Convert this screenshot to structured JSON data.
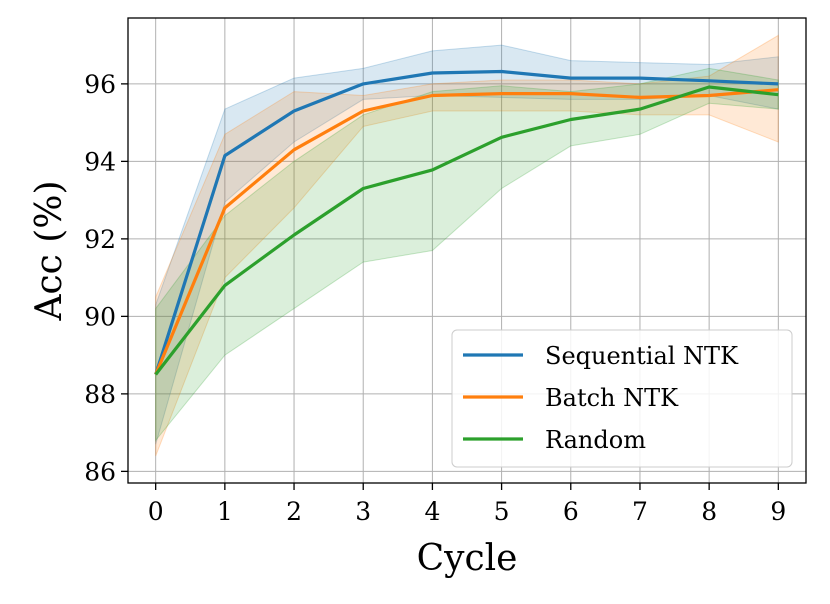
{
  "chart_data": {
    "type": "line",
    "xlabel": "Cycle",
    "ylabel": "Acc (%)",
    "x": [
      0,
      1,
      2,
      3,
      4,
      5,
      6,
      7,
      8,
      9
    ],
    "xticks": [
      0,
      1,
      2,
      3,
      4,
      5,
      6,
      7,
      8,
      9
    ],
    "yticks": [
      86,
      88,
      90,
      92,
      94,
      96
    ],
    "xlim": [
      -0.4,
      9.4
    ],
    "ylim": [
      85.7,
      97.7
    ],
    "grid": true,
    "legend_position": "lower-right",
    "series": [
      {
        "name": "Sequential NTK",
        "color": "#1f77b4",
        "values": [
          88.5,
          94.15,
          95.3,
          96.0,
          96.28,
          96.32,
          96.15,
          96.15,
          96.08,
          96.0
        ],
        "lower": [
          86.7,
          92.95,
          94.5,
          95.6,
          95.7,
          95.65,
          95.6,
          95.6,
          95.7,
          95.35
        ],
        "upper": [
          90.3,
          95.35,
          96.15,
          96.4,
          96.85,
          97.0,
          96.6,
          96.55,
          96.5,
          96.7
        ]
      },
      {
        "name": "Batch NTK",
        "color": "#ff7f0e",
        "values": [
          88.5,
          92.8,
          94.3,
          95.3,
          95.7,
          95.75,
          95.75,
          95.65,
          95.7,
          95.85
        ],
        "lower": [
          86.4,
          91.0,
          92.8,
          94.9,
          95.3,
          95.3,
          95.3,
          95.2,
          95.2,
          94.5
        ],
        "upper": [
          90.5,
          94.7,
          95.8,
          95.7,
          96.0,
          96.1,
          96.1,
          96.0,
          96.2,
          97.25
        ]
      },
      {
        "name": "Random",
        "color": "#2ca02c",
        "values": [
          88.5,
          90.8,
          92.1,
          93.3,
          93.78,
          94.62,
          95.08,
          95.35,
          95.92,
          95.72
        ],
        "lower": [
          86.8,
          89.0,
          90.2,
          91.4,
          91.7,
          93.3,
          94.4,
          94.7,
          95.5,
          95.35
        ],
        "upper": [
          90.2,
          92.6,
          94.0,
          95.2,
          95.8,
          95.95,
          95.8,
          96.0,
          96.4,
          96.1
        ]
      }
    ]
  }
}
